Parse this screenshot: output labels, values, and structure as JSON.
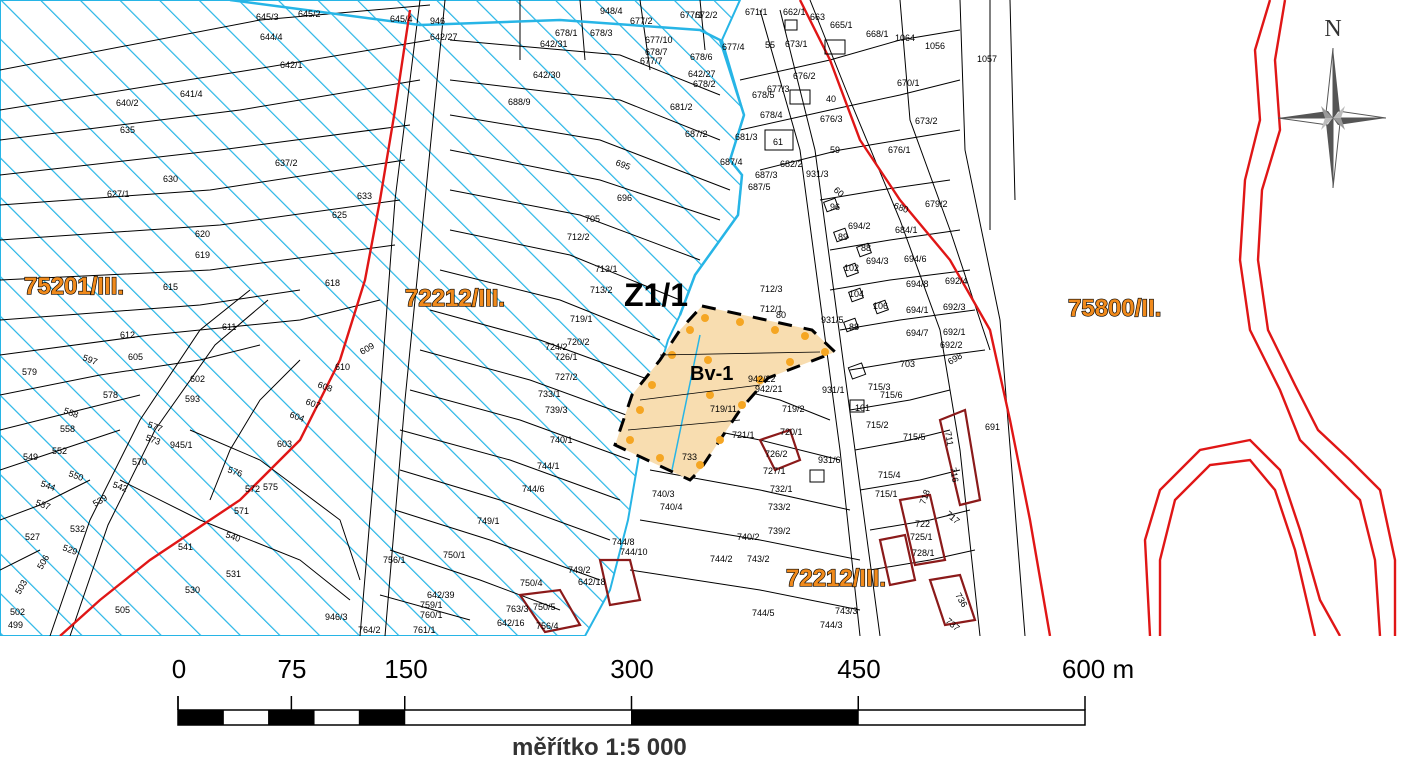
{
  "map": {
    "zones": [
      {
        "code": "75201/III."
      },
      {
        "code": "72212/III."
      },
      {
        "code": "75800/II."
      },
      {
        "code": "72212/III."
      }
    ],
    "plot_label": "Z1/1",
    "area_label": "Bv-1",
    "parcels": [
      "645/3",
      "645/2",
      "645/4",
      "644/4",
      "642/27",
      "642/1",
      "646",
      "677/2",
      "677/1",
      "672/2",
      "671/1",
      "662/1",
      "663",
      "665/1",
      "668/1",
      "1064",
      "1056",
      "1057",
      "642/31",
      "678/3",
      "678/1",
      "677/10",
      "677/4",
      "673/1",
      "55",
      "678/7",
      "677/7",
      "678/6",
      "642/30",
      "640/2",
      "641/4",
      "635",
      "688/9",
      "681/2",
      "687/2",
      "678/2",
      "678/4",
      "40",
      "670/1",
      "673/2",
      "676/1",
      "637/2",
      "630",
      "627/1",
      "633",
      "625",
      "620",
      "619",
      "618",
      "615",
      "695",
      "696",
      "705",
      "712/2",
      "713/1",
      "713/2",
      "712/3",
      "712/1",
      "80",
      "719/1",
      "720/2",
      "724/2",
      "726/1",
      "727/2",
      "733/1",
      "739/3",
      "740/1",
      "744/1",
      "744/6",
      "749/1",
      "750/1",
      "756/1",
      "642/39",
      "759/1",
      "760/1",
      "764/2",
      "946/3",
      "612",
      "611",
      "609",
      "605",
      "602",
      "593",
      "578",
      "579",
      "597",
      "588",
      "558",
      "552",
      "549",
      "544",
      "537",
      "532",
      "527",
      "506",
      "503",
      "502",
      "499",
      "505",
      "530",
      "531",
      "541",
      "540",
      "571",
      "572",
      "575",
      "576",
      "603",
      "604",
      "607",
      "608",
      "610",
      "570",
      "542",
      "539",
      "550",
      "573",
      "577",
      "691",
      "703",
      "711",
      "716",
      "717",
      "718",
      "736",
      "737",
      "722",
      "725/1",
      "728/1",
      "744/5",
      "743/3",
      "744/3",
      "744/2",
      "743/2",
      "740/2",
      "739/2",
      "733/2",
      "732/1",
      "727/1",
      "726/2",
      "720/1",
      "719/2",
      "721/1",
      "715/3",
      "715/6",
      "715/2",
      "715/5",
      "715/4",
      "715/1",
      "101",
      "694/2",
      "694/3",
      "694/6",
      "694/8",
      "694/1",
      "694/7",
      "692/1",
      "692/2",
      "692/3",
      "692/4",
      "698",
      "684/1",
      "679/2",
      "680",
      "931/3",
      "931/5",
      "931/6",
      "941",
      "942/2",
      "59",
      "61",
      "681/3",
      "687/4",
      "682/2",
      "687/3",
      "687/5",
      "60",
      "96",
      "89",
      "88",
      "102",
      "104",
      "105",
      "106",
      "684/1",
      "733",
      "740/3",
      "740/4",
      "744/8",
      "744/10",
      "749/2",
      "642/18",
      "750/4",
      "750/5",
      "756/4",
      "642/16",
      "761/1",
      "763/3",
      "676/3",
      "676/2",
      "677/3",
      "678/5"
    ]
  },
  "scale": {
    "ticks": [
      "0",
      "75",
      "150",
      "300",
      "450",
      "600 m"
    ],
    "tick_values_m": [
      0,
      75,
      150,
      300,
      450,
      600
    ],
    "title": "měřítko  1:5 000"
  },
  "north_arrow": {
    "label": "N"
  },
  "colors": {
    "cadastral_line": "#000000",
    "protection_zone": "#27b5e6",
    "boundary_red": "#e01616",
    "boundary_dark": "#8b1a1a",
    "plot_fill": "#f8ddb0",
    "plot_dot": "#f5a623",
    "zone_text": "#f08a1c"
  }
}
